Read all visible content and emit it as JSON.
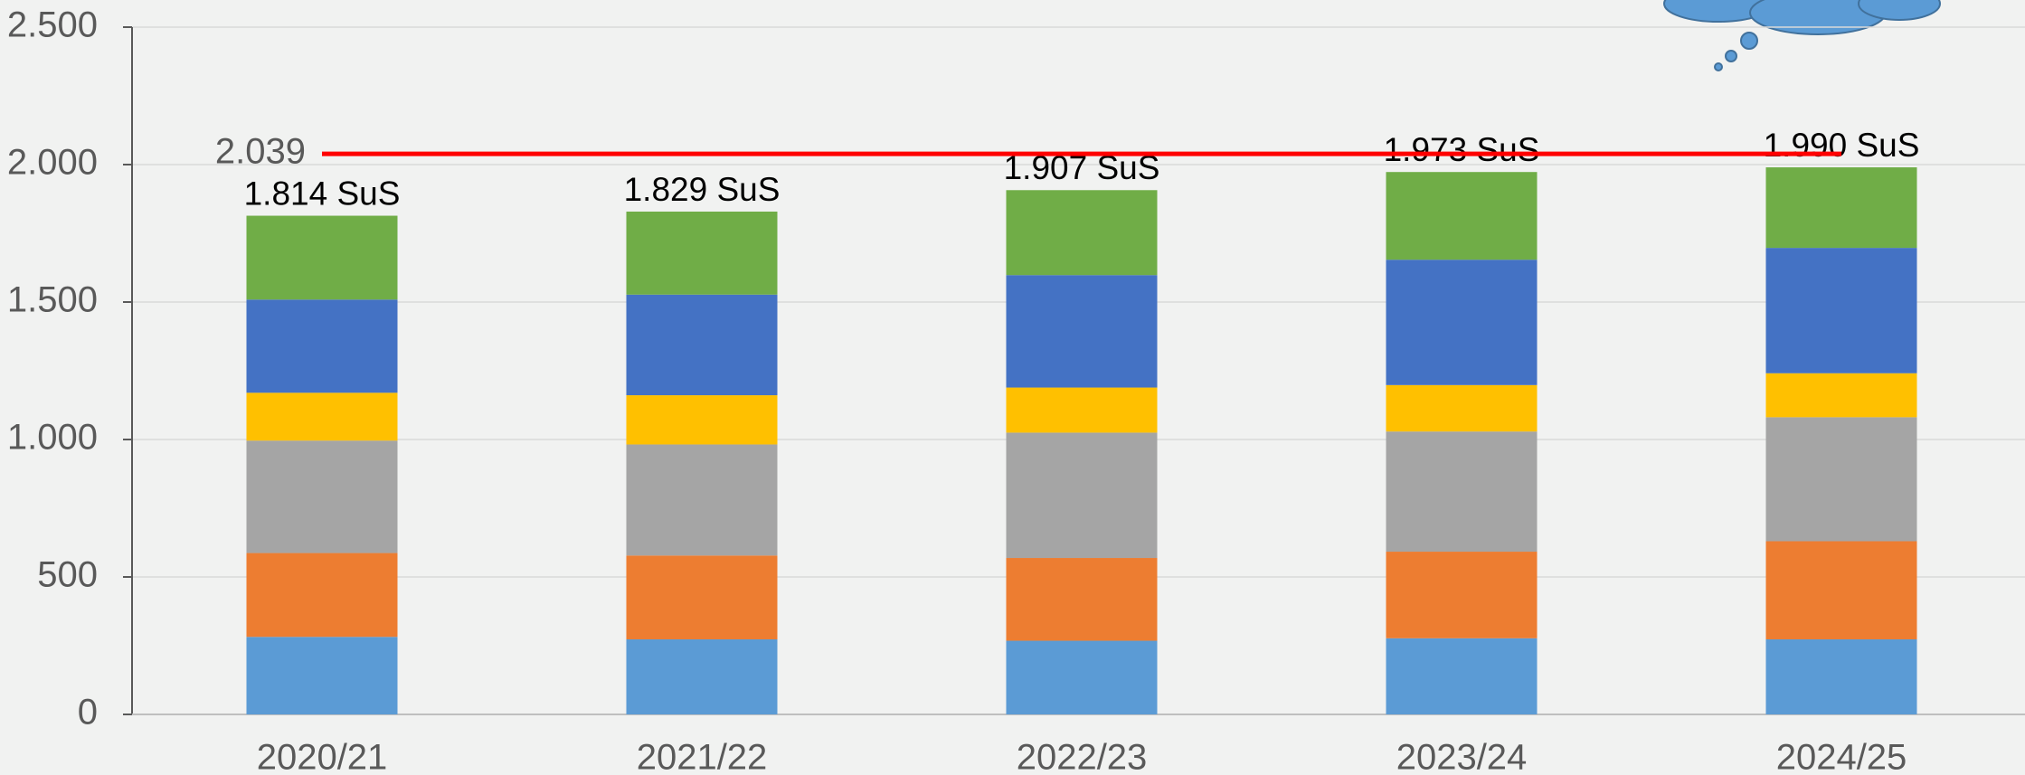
{
  "chart_data": {
    "type": "stacked_bar",
    "categories": [
      "2020/21",
      "2021/22",
      "2022/23",
      "2023/24",
      "2024/25"
    ],
    "series": [
      {
        "color": "#5b9bd5",
        "values": [
          282,
          273,
          268,
          277,
          273
        ]
      },
      {
        "color": "#ed7d31",
        "values": [
          305,
          305,
          301,
          315,
          357
        ]
      },
      {
        "color": "#a5a5a5",
        "values": [
          409,
          404,
          456,
          437,
          451
        ]
      },
      {
        "color": "#ffc000",
        "values": [
          174,
          179,
          164,
          169,
          160
        ]
      },
      {
        "color": "#4472c4",
        "values": [
          339,
          366,
          409,
          456,
          456
        ]
      },
      {
        "color": "#70ad47",
        "values": [
          305,
          302,
          309,
          319,
          293
        ]
      }
    ],
    "totals": {
      "values": [
        1814,
        1829,
        1907,
        1973,
        1990
      ],
      "value_labels": [
        "1.814 SuS",
        "1.829 SuS",
        "1.907 SuS",
        "1.973 SuS",
        "1.990 SuS"
      ]
    },
    "reference_line": {
      "value": 2039,
      "label": "2.039",
      "color": "#ff0000"
    },
    "ylim": [
      0,
      2500
    ],
    "yticks": [
      0,
      500,
      {
        "value": 1000,
        "label": "1.000"
      },
      {
        "value": 1500,
        "label": "1.500"
      },
      {
        "value": 2000,
        "label": "2.000"
      },
      {
        "value": 2500,
        "label": "2.500"
      }
    ],
    "grid": true
  }
}
